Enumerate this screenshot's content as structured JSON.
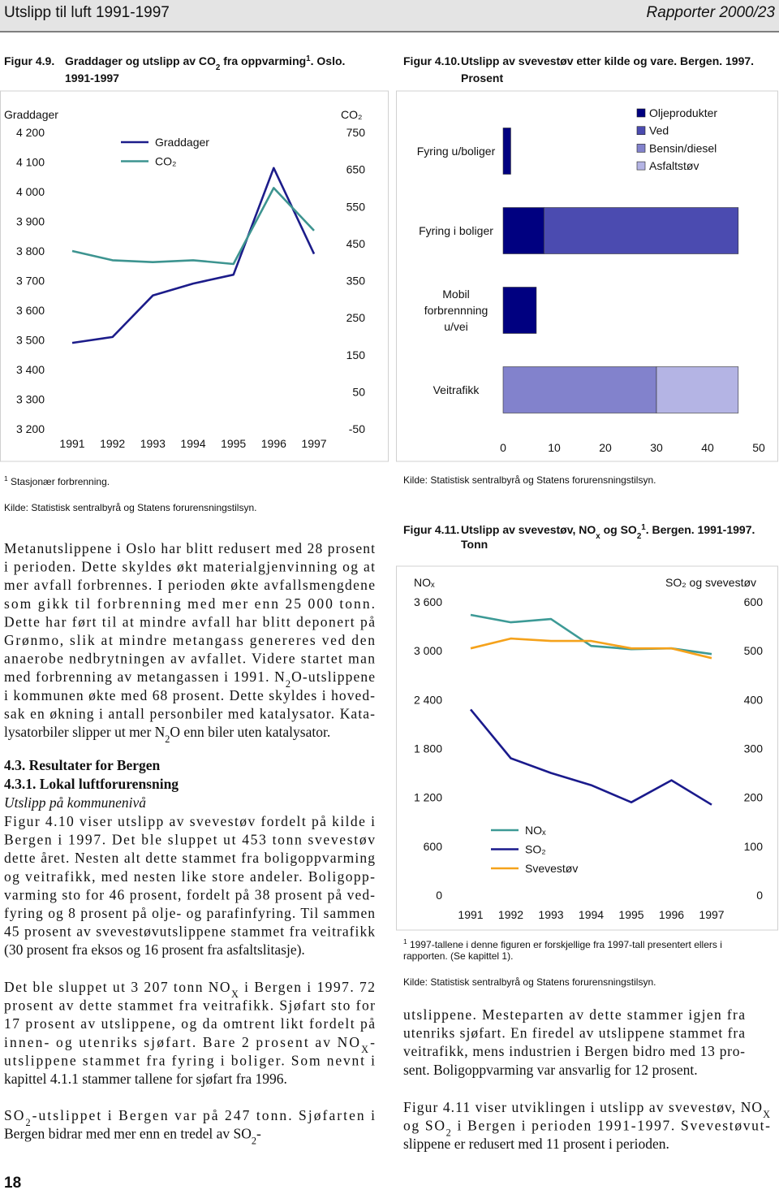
{
  "header": {
    "title": "Utslipp til luft 1991-1997",
    "report": "Rapporter 2000/23"
  },
  "chart_data": [
    {
      "type": "line",
      "figure_label": "Figur 4.9.",
      "title": [
        "Graddager og utslipp av CO",
        {
          "sub": "2"
        },
        " fra oppvarming",
        {
          "sup": "1"
        },
        ". Oslo."
      ],
      "subtitle": "1991-1997",
      "y_label": "Graddager",
      "y2_label": "CO₂",
      "categories": [
        "1991",
        "1992",
        "1993",
        "1994",
        "1995",
        "1996",
        "1997"
      ],
      "ylim": [
        3200,
        4200
      ],
      "yticks": [
        {
          "value": 3200,
          "label": "3 200"
        },
        {
          "value": 3300,
          "label": "3 300"
        },
        {
          "value": 3400,
          "label": "3 400"
        },
        {
          "value": 3500,
          "label": "3 500"
        },
        {
          "value": 3600,
          "label": "3 600"
        },
        {
          "value": 3700,
          "label": "3 700"
        },
        {
          "value": 3800,
          "label": "3 800"
        },
        {
          "value": 3900,
          "label": "3 900"
        },
        {
          "value": 4000,
          "label": "4 000"
        },
        {
          "value": 4100,
          "label": "4 100"
        },
        {
          "value": 4200,
          "label": "4 200"
        }
      ],
      "y2lim": [
        -50,
        750
      ],
      "y2ticks": [
        -50,
        50,
        150,
        250,
        350,
        450,
        550,
        650,
        750
      ],
      "series": [
        {
          "name": "Graddager",
          "color": "#1c1c8a",
          "values": [
            3490,
            3510,
            3650,
            3690,
            3720,
            4080,
            3790
          ]
        },
        {
          "name": "CO₂",
          "color": "#3d9490",
          "axis": "y2",
          "values": [
            430,
            405,
            400,
            405,
            395,
            600,
            485
          ]
        }
      ],
      "legend": "top-left",
      "grid": false,
      "footnote": [
        [
          {
            "sup": "1"
          },
          " Stasjonær forbrenning."
        ]
      ],
      "source": "Kilde: Statistisk sentralbyrå og Statens forurensningstilsyn."
    },
    {
      "type": "bar",
      "orientation": "horizontal",
      "stacked": true,
      "figure_label": "Figur 4.10.",
      "title": [
        "Utslipp av svevestøv etter kilde og vare. Bergen. 1997."
      ],
      "subtitle": "Prosent",
      "categories": [
        "Fyring u/boliger",
        "Fyring i boliger",
        "Mobil forbrennning u/vei",
        "Veitrafikk"
      ],
      "xlim": [
        0,
        50
      ],
      "xticks": [
        0,
        10,
        20,
        30,
        40,
        50
      ],
      "series": [
        {
          "name": "Oljeprodukter",
          "color": "#000080",
          "values": [
            1.5,
            8,
            6.5,
            null
          ]
        },
        {
          "name": "Ved",
          "color": "#4b4bb0",
          "values": [
            null,
            38,
            null,
            null
          ]
        },
        {
          "name": "Bensin/diesel",
          "color": "#8282cc",
          "values": [
            null,
            null,
            null,
            30
          ]
        },
        {
          "name": "Asfaltstøv",
          "color": "#b4b4e4",
          "values": [
            null,
            null,
            null,
            16
          ]
        }
      ],
      "legend": "top-right",
      "grid": false,
      "footnote": [],
      "source": "Kilde: Statistisk sentralbyrå og Statens forurensningstilsyn."
    },
    {
      "type": "line",
      "figure_label": "Figur 4.11.",
      "title": [
        "Utslipp av svevestøv, NO",
        {
          "sub": "x"
        },
        " og SO",
        {
          "sub": "2"
        },
        {
          "sup": "1"
        },
        ". Bergen. 1991-1997."
      ],
      "subtitle": "Tonn",
      "y_label": "NOₓ",
      "y2_label": "SO₂ og svevestøv",
      "categories": [
        "1991",
        "1992",
        "1993",
        "1994",
        "1995",
        "1996",
        "1997"
      ],
      "ylim": [
        0,
        3600
      ],
      "yticks": [
        0,
        600,
        {
          "value": 1200,
          "label": "1 200"
        },
        {
          "value": 1800,
          "label": "1 800"
        },
        {
          "value": 2400,
          "label": "2 400"
        },
        {
          "value": 3000,
          "label": "3 000"
        },
        {
          "value": 3600,
          "label": "3 600"
        }
      ],
      "y2lim": [
        0,
        600
      ],
      "y2ticks": [
        0,
        100,
        200,
        300,
        400,
        500,
        600
      ],
      "series": [
        {
          "name": "NOₓ",
          "color": "#3d9a96",
          "values": [
            3440,
            3350,
            3390,
            3060,
            3020,
            3030,
            2960
          ]
        },
        {
          "name": "SO₂",
          "color": "#1a1a8c",
          "axis": "y2",
          "values": [
            380,
            280,
            250,
            225,
            190,
            235,
            185
          ]
        },
        {
          "name": "Svevestøv",
          "color": "#f5a21b",
          "axis": "y2",
          "values": [
            505,
            525,
            520,
            520,
            505,
            505,
            485
          ]
        }
      ],
      "legend": "bottom-left",
      "grid": false,
      "footnote": [
        [
          {
            "sup": "1"
          },
          " 1997-tallene i denne figuren er forskjellige fra 1997-tall presentert ellers i"
        ],
        "rapporten. (Se kapittel 1)."
      ],
      "source": "Kilde: Statistisk sentralbyrå og Statens forurensningstilsyn."
    }
  ],
  "text": {
    "p1": [
      "Metanutslippene i Oslo har blitt redusert med 28 prosent",
      "i perioden. Dette skyldes økt materialgjenvinning og at",
      "mer avfall forbrennes. I perioden økte avfallsmengdene",
      "som gikk til forbrenning med mer enn 25 000 tonn.",
      "Dette har ført til at mindre avfall har blitt deponert på",
      "Grønmo, slik at mindre metangass genereres ved den",
      "anaerobe nedbrytningen av avfallet. Videre startet man",
      [
        "med forbrenning av metangassen i 1991. N",
        {
          "sub": "2"
        },
        "O-utslippene"
      ],
      "i kommunen økte med 68 prosent. Dette skyldes i hoved-",
      "sak en økning i antall personbiler med katalysator. Kata-",
      [
        "lysatorbiler slipper ut mer N",
        {
          "sub": "2"
        },
        "O enn biler uten katalysator."
      ]
    ],
    "heading1": "4.3. Resultater for Bergen",
    "heading2": "4.3.1. Lokal luftforurensning",
    "heading3": "Utslipp på kommunenivå",
    "p2": [
      "Figur 4.10 viser utslipp av svevestøv fordelt på kilde i",
      "Bergen i 1997. Det ble sluppet ut 453 tonn svevestøv",
      "dette året. Nesten alt dette stammet fra boligoppvarming",
      "og veitrafikk, med nesten like store andeler. Boligopp-",
      "varming sto for 46 prosent, fordelt på 38 prosent på ved-",
      "fyring og 8 prosent på olje- og parafinfyring. Til sammen",
      "45 prosent av svevestøvutslippene stammet fra veitrafikk",
      "(30 prosent fra eksos og 16 prosent fra asfaltslitasje)."
    ],
    "p3": [
      [
        "Det ble sluppet ut 3 207 tonn NO",
        {
          "sub": "X"
        },
        " i Bergen i 1997. 72"
      ],
      "prosent av dette stammet fra veitrafikk. Sjøfart sto for",
      "17 prosent av utslippene, og da omtrent likt fordelt på",
      [
        "innen- og utenriks sjøfart. Bare 2 prosent av NO",
        {
          "sub": "X"
        },
        "-"
      ],
      "utslippene stammet fra fyring i boliger. Som nevnt i",
      "kapittel 4.1.1 stammer tallene for sjøfart fra 1996."
    ],
    "p4": [
      [
        "SO",
        {
          "sub": "2"
        },
        "-utslippet i Bergen var på 247 tonn. Sjøfarten i"
      ],
      [
        "Bergen bidrar med mer enn en tredel av SO",
        {
          "sub": "2"
        },
        "-"
      ]
    ],
    "p5": [
      "utslippene. Mesteparten av dette stammer igjen fra",
      "utenriks sjøfart. En firedel av utslippene stammet fra",
      "veitrafikk, mens industrien i Bergen bidro med 13 pro-",
      "sent. Boligoppvarming var ansvarlig for 12 prosent."
    ],
    "p6": [
      [
        "Figur 4.11 viser utviklingen i utslipp av svevestøv, NO",
        {
          "sub": "X"
        }
      ],
      [
        "og SO",
        {
          "sub": "2"
        },
        " i Bergen i perioden 1991-1997. Svevestøvut-"
      ],
      "slippene er redusert med 11 prosent i perioden."
    ]
  },
  "page_number": 18
}
